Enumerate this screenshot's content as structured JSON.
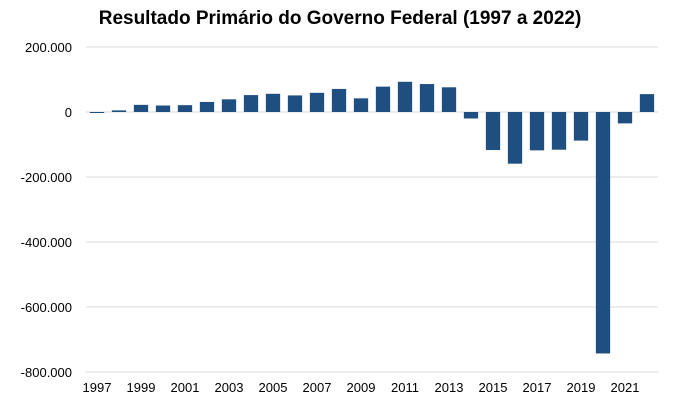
{
  "chart_data": {
    "type": "bar",
    "title": "Resultado Primário do Governo Federal (1997 a 2022)",
    "xlabel": "",
    "ylabel": "",
    "ylim": [
      -800000,
      200000
    ],
    "grid": true,
    "bar_color": "#1f4e80",
    "grid_color": "#d9d9d9",
    "y_ticks": [
      200000,
      0,
      -200000,
      -400000,
      -600000,
      -800000
    ],
    "y_tick_labels": [
      "200.000",
      "0",
      "-200.000",
      "-400.000",
      "-600.000",
      "-800.000"
    ],
    "x_tick_labels": [
      "1997",
      "1999",
      "2001",
      "2003",
      "2005",
      "2007",
      "2009",
      "2011",
      "2013",
      "2015",
      "2017",
      "2019",
      "2021"
    ],
    "categories": [
      "1997",
      "1998",
      "1999",
      "2000",
      "2001",
      "2002",
      "2003",
      "2004",
      "2005",
      "2006",
      "2007",
      "2008",
      "2009",
      "2010",
      "2011",
      "2012",
      "2013",
      "2014",
      "2015",
      "2016",
      "2017",
      "2018",
      "2019",
      "2020",
      "2021",
      "2022"
    ],
    "values": [
      -3000,
      5000,
      22000,
      20000,
      21000,
      31000,
      39000,
      52000,
      56000,
      51000,
      59000,
      71000,
      42000,
      78000,
      93000,
      86000,
      76000,
      -20000,
      -117000,
      -159000,
      -118000,
      -116000,
      -88000,
      -743000,
      -35000,
      55000
    ]
  }
}
